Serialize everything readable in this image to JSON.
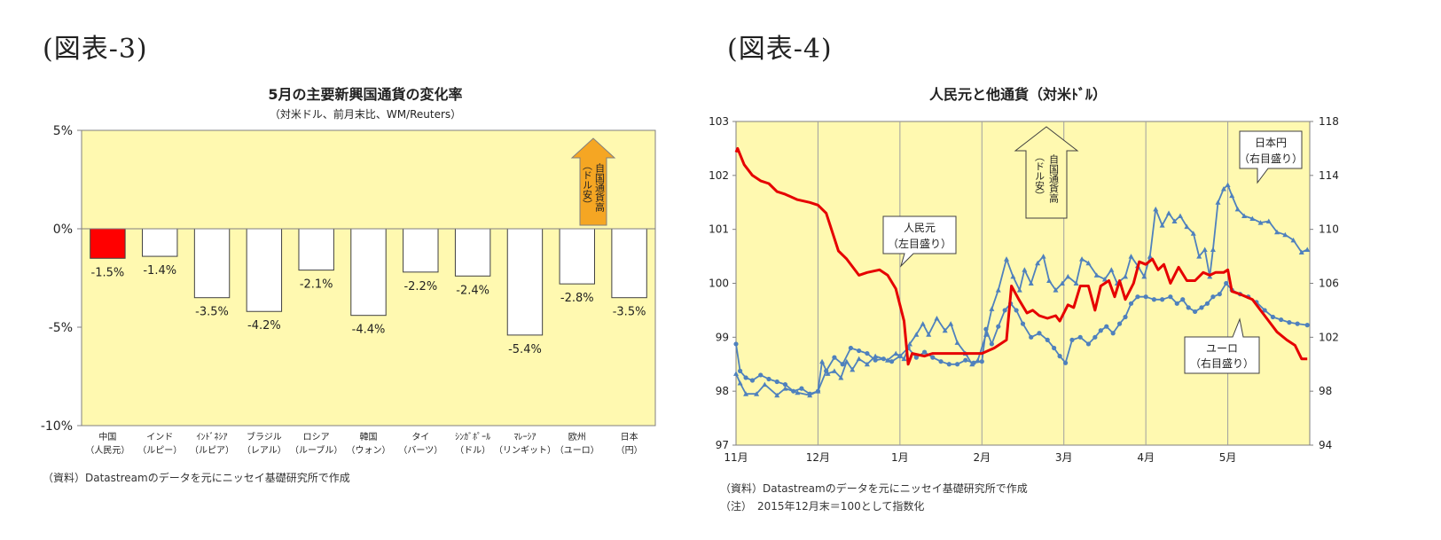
{
  "figures": {
    "left_label": "(図表-3)",
    "right_label": "(図表-4)"
  },
  "chart_data": [
    {
      "type": "bar",
      "title": "5月の主要新興国通貨の変化率",
      "subtitle": "（対米ドル、前月末比、WM/Reuters）",
      "ylim": [
        -10,
        5
      ],
      "yticks": [
        "5%",
        "0%",
        "-5%",
        "-10%"
      ],
      "grid": false,
      "categories": [
        [
          "中国",
          "（人民元）"
        ],
        [
          "インド",
          "（ルピー）"
        ],
        [
          "ｲﾝﾄﾞﾈｼｱ",
          "（ルピア）"
        ],
        [
          "ブラジル",
          "（レアル）"
        ],
        [
          "ロシア",
          "（ルーブル）"
        ],
        [
          "韓国",
          "（ウォン）"
        ],
        [
          "タイ",
          "（バーツ）"
        ],
        [
          "ｼﾝｶﾞﾎﾟｰﾙ",
          "（ドル）"
        ],
        [
          "ﾏﾚｰｼｱ",
          "（リンギット）"
        ],
        [
          "欧州",
          "（ユーロ）"
        ],
        [
          "日本",
          "（円）"
        ]
      ],
      "values": [
        -1.5,
        -1.4,
        -3.5,
        -4.2,
        -2.1,
        -4.4,
        -2.2,
        -2.4,
        -5.4,
        -2.8,
        -3.5
      ],
      "value_labels": [
        "-1.5%",
        "-1.4%",
        "-3.5%",
        "-4.2%",
        "-2.1%",
        "-4.4%",
        "-2.2%",
        "-2.4%",
        "-5.4%",
        "-2.8%",
        "-3.5%"
      ],
      "highlight_index": 0,
      "colors": {
        "plot_bg": "#fff9b0",
        "highlight": "#ff0000",
        "bar": "#ffffff",
        "arrow": "#f5a623",
        "axis": "#808080"
      },
      "annotation": {
        "lines": [
          "自国通貨高",
          "（ドル安）"
        ]
      },
      "source": "（資料）Datastreamのデータを元にニッセイ基礎研究所で作成"
    },
    {
      "type": "line",
      "title": "人民元と他通貨（対米ﾄﾞﾙ）",
      "x_labels": [
        "11月",
        "12月",
        "1月",
        "2月",
        "3月",
        "4月",
        "5月"
      ],
      "ylim_left": [
        97,
        103
      ],
      "yticks_left": [
        "103",
        "102",
        "101",
        "100",
        "99",
        "98",
        "97"
      ],
      "ylim_right": [
        94,
        118
      ],
      "yticks_right": [
        "118",
        "114",
        "110",
        "106",
        "102",
        "98",
        "94"
      ],
      "grid": "vertical",
      "series": [
        {
          "name": "人民元",
          "axis": "left",
          "color": "#e60000",
          "points": [
            [
              0,
              102.43
            ],
            [
              0.02,
              102.5
            ],
            [
              0.1,
              102.2
            ],
            [
              0.2,
              102.0
            ],
            [
              0.3,
              101.9
            ],
            [
              0.4,
              101.85
            ],
            [
              0.5,
              101.7
            ],
            [
              0.6,
              101.65
            ],
            [
              0.75,
              101.55
            ],
            [
              0.9,
              101.5
            ],
            [
              1.0,
              101.45
            ],
            [
              1.1,
              101.3
            ],
            [
              1.25,
              100.6
            ],
            [
              1.35,
              100.45
            ],
            [
              1.5,
              100.15
            ],
            [
              1.6,
              100.2
            ],
            [
              1.75,
              100.25
            ],
            [
              1.85,
              100.15
            ],
            [
              1.95,
              99.9
            ],
            [
              2.05,
              99.3
            ],
            [
              2.1,
              98.5
            ],
            [
              2.15,
              98.7
            ],
            [
              2.3,
              98.65
            ],
            [
              2.4,
              98.7
            ],
            [
              2.6,
              98.7
            ],
            [
              2.85,
              98.7
            ],
            [
              3.0,
              98.7
            ],
            [
              3.15,
              98.8
            ],
            [
              3.3,
              98.95
            ],
            [
              3.36,
              99.95
            ],
            [
              3.45,
              99.7
            ],
            [
              3.55,
              99.45
            ],
            [
              3.62,
              99.5
            ],
            [
              3.7,
              99.4
            ],
            [
              3.8,
              99.35
            ],
            [
              3.9,
              99.4
            ],
            [
              3.95,
              99.3
            ],
            [
              4.05,
              99.6
            ],
            [
              4.12,
              99.55
            ],
            [
              4.2,
              99.95
            ],
            [
              4.3,
              99.95
            ],
            [
              4.38,
              99.5
            ],
            [
              4.45,
              99.95
            ],
            [
              4.55,
              100.05
            ],
            [
              4.62,
              99.75
            ],
            [
              4.68,
              100.05
            ],
            [
              4.75,
              99.7
            ],
            [
              4.85,
              100.0
            ],
            [
              4.92,
              100.4
            ],
            [
              5.0,
              100.35
            ],
            [
              5.08,
              100.45
            ],
            [
              5.15,
              100.25
            ],
            [
              5.22,
              100.35
            ],
            [
              5.3,
              100.0
            ],
            [
              5.4,
              100.3
            ],
            [
              5.5,
              100.05
            ],
            [
              5.6,
              100.05
            ],
            [
              5.7,
              100.2
            ],
            [
              5.78,
              100.15
            ],
            [
              5.85,
              100.2
            ],
            [
              5.95,
              100.2
            ],
            [
              6.0,
              100.25
            ],
            [
              6.05,
              99.85
            ],
            [
              6.15,
              99.8
            ],
            [
              6.3,
              99.7
            ],
            [
              6.4,
              99.5
            ],
            [
              6.5,
              99.3
            ],
            [
              6.6,
              99.1
            ],
            [
              6.72,
              98.95
            ],
            [
              6.82,
              98.85
            ],
            [
              6.9,
              98.6
            ],
            [
              6.97,
              98.6
            ]
          ]
        },
        {
          "name": "日本円",
          "axis": "right",
          "color": "#4f81bd",
          "points": [
            [
              0,
              99.3
            ],
            [
              0.05,
              98.6
            ],
            [
              0.12,
              97.8
            ],
            [
              0.25,
              97.8
            ],
            [
              0.35,
              98.5
            ],
            [
              0.5,
              97.7
            ],
            [
              0.6,
              98.2
            ],
            [
              0.75,
              97.9
            ],
            [
              0.9,
              97.7
            ],
            [
              1.0,
              98.0
            ],
            [
              1.05,
              100.2
            ],
            [
              1.12,
              99.3
            ],
            [
              1.2,
              99.5
            ],
            [
              1.28,
              99.0
            ],
            [
              1.35,
              100.2
            ],
            [
              1.42,
              99.6
            ],
            [
              1.5,
              100.4
            ],
            [
              1.6,
              100.0
            ],
            [
              1.7,
              100.6
            ],
            [
              1.85,
              100.3
            ],
            [
              1.95,
              100.8
            ],
            [
              2.05,
              100.4
            ],
            [
              2.12,
              101.5
            ],
            [
              2.2,
              102.2
            ],
            [
              2.28,
              103.0
            ],
            [
              2.35,
              102.2
            ],
            [
              2.45,
              103.4
            ],
            [
              2.55,
              102.5
            ],
            [
              2.62,
              103.0
            ],
            [
              2.7,
              101.6
            ],
            [
              2.8,
              100.8
            ],
            [
              2.88,
              100.0
            ],
            [
              2.95,
              100.3
            ],
            [
              3.05,
              102.2
            ],
            [
              3.12,
              104.1
            ],
            [
              3.2,
              105.5
            ],
            [
              3.3,
              107.8
            ],
            [
              3.38,
              106.5
            ],
            [
              3.46,
              105.5
            ],
            [
              3.52,
              107.0
            ],
            [
              3.6,
              106.0
            ],
            [
              3.68,
              107.5
            ],
            [
              3.75,
              108.0
            ],
            [
              3.82,
              106.2
            ],
            [
              3.9,
              105.5
            ],
            [
              3.98,
              106.0
            ],
            [
              4.05,
              106.5
            ],
            [
              4.15,
              106.0
            ],
            [
              4.22,
              107.8
            ],
            [
              4.3,
              107.5
            ],
            [
              4.4,
              106.6
            ],
            [
              4.5,
              106.3
            ],
            [
              4.58,
              107.0
            ],
            [
              4.65,
              106.0
            ],
            [
              4.75,
              106.5
            ],
            [
              4.82,
              108.0
            ],
            [
              4.9,
              107.3
            ],
            [
              4.98,
              106.5
            ],
            [
              5.05,
              108.0
            ],
            [
              5.12,
              111.5
            ],
            [
              5.2,
              110.3
            ],
            [
              5.28,
              111.2
            ],
            [
              5.35,
              110.6
            ],
            [
              5.42,
              111.0
            ],
            [
              5.5,
              110.2
            ],
            [
              5.58,
              109.7
            ],
            [
              5.65,
              108.0
            ],
            [
              5.72,
              108.5
            ],
            [
              5.78,
              106.5
            ],
            [
              5.82,
              108.5
            ],
            [
              5.88,
              112.0
            ],
            [
              5.95,
              113.0
            ],
            [
              6.0,
              113.3
            ],
            [
              6.05,
              112.5
            ],
            [
              6.12,
              111.5
            ],
            [
              6.2,
              111.0
            ],
            [
              6.3,
              110.8
            ],
            [
              6.4,
              110.5
            ],
            [
              6.5,
              110.6
            ],
            [
              6.6,
              109.8
            ],
            [
              6.7,
              109.6
            ],
            [
              6.8,
              109.2
            ],
            [
              6.9,
              108.3
            ],
            [
              6.97,
              108.5
            ]
          ]
        },
        {
          "name": "ユーロ",
          "axis": "right",
          "color": "#4f81bd",
          "points": [
            [
              0,
              101.5
            ],
            [
              0.05,
              99.5
            ],
            [
              0.12,
              99.0
            ],
            [
              0.2,
              98.8
            ],
            [
              0.3,
              99.2
            ],
            [
              0.4,
              98.9
            ],
            [
              0.5,
              98.7
            ],
            [
              0.6,
              98.5
            ],
            [
              0.7,
              98.0
            ],
            [
              0.8,
              98.2
            ],
            [
              0.9,
              97.8
            ],
            [
              1.0,
              98.0
            ],
            [
              1.1,
              99.5
            ],
            [
              1.2,
              100.5
            ],
            [
              1.3,
              100.0
            ],
            [
              1.4,
              101.2
            ],
            [
              1.5,
              101.0
            ],
            [
              1.6,
              100.8
            ],
            [
              1.7,
              100.3
            ],
            [
              1.8,
              100.4
            ],
            [
              1.9,
              100.2
            ],
            [
              2.0,
              100.6
            ],
            [
              2.1,
              101.2
            ],
            [
              2.2,
              100.5
            ],
            [
              2.3,
              100.9
            ],
            [
              2.4,
              100.5
            ],
            [
              2.5,
              100.2
            ],
            [
              2.6,
              100.0
            ],
            [
              2.7,
              100.0
            ],
            [
              2.8,
              100.3
            ],
            [
              2.9,
              100.1
            ],
            [
              3.0,
              100.2
            ],
            [
              3.05,
              102.6
            ],
            [
              3.12,
              101.5
            ],
            [
              3.2,
              102.8
            ],
            [
              3.28,
              104.0
            ],
            [
              3.35,
              104.5
            ],
            [
              3.42,
              104.0
            ],
            [
              3.5,
              103.0
            ],
            [
              3.6,
              102.0
            ],
            [
              3.7,
              102.3
            ],
            [
              3.8,
              101.8
            ],
            [
              3.88,
              101.2
            ],
            [
              3.95,
              100.6
            ],
            [
              4.02,
              100.1
            ],
            [
              4.1,
              101.8
            ],
            [
              4.2,
              102.0
            ],
            [
              4.3,
              101.5
            ],
            [
              4.38,
              102.0
            ],
            [
              4.45,
              102.5
            ],
            [
              4.52,
              102.8
            ],
            [
              4.6,
              102.3
            ],
            [
              4.68,
              103.0
            ],
            [
              4.75,
              103.5
            ],
            [
              4.82,
              104.5
            ],
            [
              4.9,
              105.0
            ],
            [
              5.0,
              105.0
            ],
            [
              5.1,
              104.8
            ],
            [
              5.2,
              104.8
            ],
            [
              5.3,
              105.0
            ],
            [
              5.38,
              104.5
            ],
            [
              5.45,
              104.8
            ],
            [
              5.52,
              104.2
            ],
            [
              5.6,
              103.9
            ],
            [
              5.68,
              104.2
            ],
            [
              5.75,
              104.5
            ],
            [
              5.82,
              105.0
            ],
            [
              5.9,
              105.2
            ],
            [
              5.98,
              106.0
            ],
            [
              6.05,
              105.5
            ],
            [
              6.15,
              105.2
            ],
            [
              6.25,
              105.0
            ],
            [
              6.35,
              104.6
            ],
            [
              6.45,
              104.0
            ],
            [
              6.55,
              103.5
            ],
            [
              6.65,
              103.3
            ],
            [
              6.75,
              103.1
            ],
            [
              6.85,
              103.0
            ],
            [
              6.97,
              102.9
            ]
          ]
        }
      ],
      "annotations": {
        "arrow_lines": [
          "自国通貨高",
          "（ドル安）"
        ],
        "callout_cny": [
          "人民元",
          "（左目盛り）"
        ],
        "callout_jpy": [
          "日本円",
          "（右目盛り）"
        ],
        "callout_eur": [
          "ユーロ",
          "（右目盛り）"
        ]
      },
      "source": "（資料）Datastreamのデータを元にニッセイ基礎研究所で作成",
      "note": "（注）　2015年12月末＝100として指数化",
      "colors": {
        "plot_bg": "#fff9b0",
        "grid": "#a0a0a0"
      }
    }
  ]
}
